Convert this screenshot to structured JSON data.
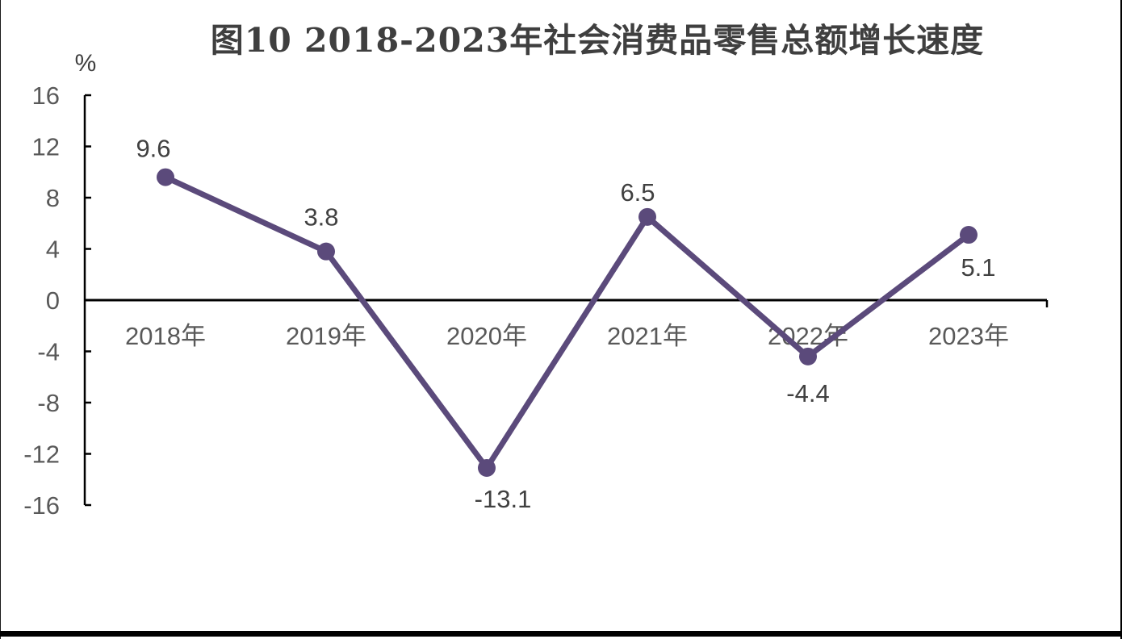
{
  "page": {
    "background": "#ffffff"
  },
  "chart_data": {
    "type": "line",
    "title": "图10 2018-2023年社会消费品零售总额增长速度",
    "xlabel": "",
    "ylabel": "%",
    "categories": [
      "2018年",
      "2019年",
      "2020年",
      "2021年",
      "2022年",
      "2023年"
    ],
    "series": [
      {
        "name": "社会消费品零售总额增长速度",
        "values": [
          9.6,
          3.8,
          -13.1,
          6.5,
          -4.4,
          5.1
        ]
      }
    ],
    "data_labels": [
      "9.6",
      "3.8",
      "-13.1",
      "6.5",
      "-4.4",
      "5.1"
    ],
    "label_placement": [
      "above",
      "above",
      "below",
      "above",
      "below",
      "below-right"
    ],
    "ylim": [
      -16,
      16
    ],
    "yticks": [
      16,
      12,
      8,
      4,
      0,
      -4,
      -8,
      -12,
      -16
    ],
    "grid": "off",
    "legend": "none",
    "colors": {
      "line": "#5b4a7b",
      "marker": "#5b4a7b",
      "axis": "#000000",
      "tick_label": "#595959",
      "data_label": "#404040",
      "title": "#3f3f3f"
    }
  }
}
